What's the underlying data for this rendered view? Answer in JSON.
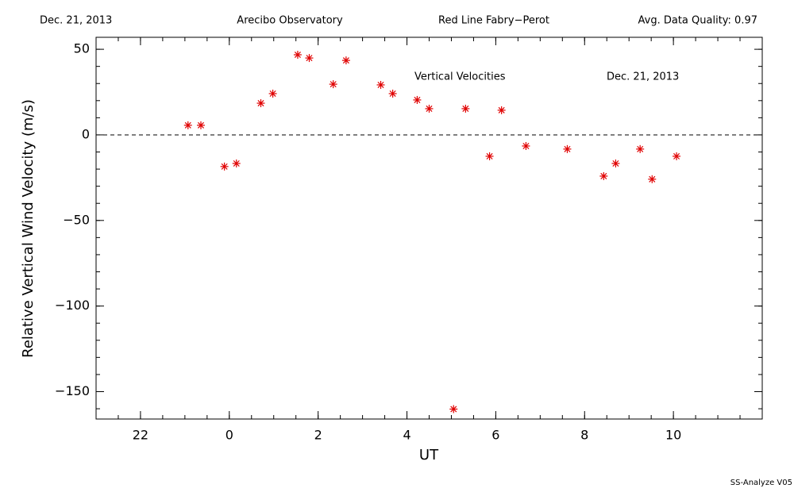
{
  "chart_data": {
    "type": "scatter",
    "header": [
      "Dec. 21, 2013",
      "Arecibo Observatory",
      "Red Line Fabry−Perot",
      "Avg. Data Quality: 0.97"
    ],
    "annotations": [
      "Vertical Velocities",
      "Dec. 21, 2013"
    ],
    "footer": "SS-Analyze V05",
    "xlabel": "UT",
    "ylabel": "Relative Vertical Wind Velocity (m/s)",
    "color": "#e00000",
    "x": [
      -0.93,
      -0.64,
      -0.11,
      0.16,
      0.71,
      0.98,
      1.54,
      1.8,
      2.34,
      2.63,
      3.41,
      3.68,
      4.23,
      4.5,
      5.05,
      5.32,
      5.86,
      6.13,
      6.68,
      7.61,
      8.43,
      8.7,
      9.25,
      9.52,
      10.07
    ],
    "values": [
      5.6,
      5.6,
      -18.5,
      -16.7,
      18.5,
      24.1,
      46.8,
      44.9,
      29.6,
      43.5,
      29.2,
      24.1,
      20.4,
      15.3,
      -160.2,
      15.3,
      -12.5,
      14.4,
      -6.5,
      -8.3,
      -24.1,
      -16.7,
      -8.3,
      -25.9,
      -12.5
    ],
    "xlim": [
      -3,
      12
    ],
    "ylim": [
      -166,
      57
    ],
    "xticks": [
      {
        "value": -2,
        "label": "22"
      },
      0,
      2,
      4,
      6,
      8,
      10
    ],
    "yticks": [
      {
        "value": -150,
        "label": "−150"
      },
      {
        "value": -100,
        "label": "−100"
      },
      {
        "value": -50,
        "label": "−50"
      },
      0,
      50
    ],
    "xminor": 0.5,
    "yminor": 10,
    "reference_line": 0
  }
}
